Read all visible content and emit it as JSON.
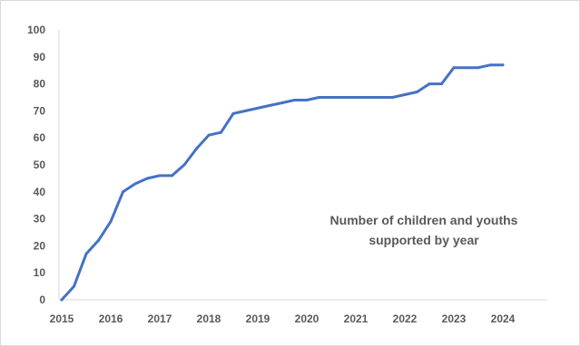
{
  "chart_data": {
    "type": "line",
    "title": "",
    "xlabel": "",
    "ylabel": "",
    "xlim": [
      2015,
      2025
    ],
    "ylim": [
      0,
      100
    ],
    "x_ticks": [
      "2015",
      "2016",
      "2017",
      "2018",
      "2019",
      "2020",
      "2021",
      "2022",
      "2023",
      "2024"
    ],
    "y_ticks": [
      "0",
      "10",
      "20",
      "30",
      "40",
      "50",
      "60",
      "70",
      "80",
      "90",
      "100"
    ],
    "grid": false,
    "legend": "none",
    "annotation": [
      "Number of children and youths",
      "supported by year"
    ],
    "series": [
      {
        "color": "#4472c4",
        "x": [
          2015.0,
          2015.25,
          2015.5,
          2015.75,
          2016.0,
          2016.25,
          2016.5,
          2016.75,
          2017.0,
          2017.25,
          2017.5,
          2017.75,
          2018.0,
          2018.25,
          2018.5,
          2018.75,
          2019.0,
          2019.25,
          2019.5,
          2019.75,
          2020.0,
          2020.25,
          2020.5,
          2020.75,
          2021.0,
          2021.25,
          2021.5,
          2021.75,
          2022.0,
          2022.25,
          2022.5,
          2022.75,
          2023.0,
          2023.25,
          2023.5,
          2023.75,
          2024.0
        ],
        "values": [
          0,
          5,
          17,
          22,
          29,
          40,
          43,
          45,
          46,
          46,
          50,
          56,
          61,
          62,
          69,
          70,
          71,
          72,
          73,
          74,
          74,
          75,
          75,
          75,
          75,
          75,
          75,
          75,
          76,
          77,
          80,
          80,
          86,
          86,
          86,
          87,
          87
        ]
      }
    ]
  }
}
